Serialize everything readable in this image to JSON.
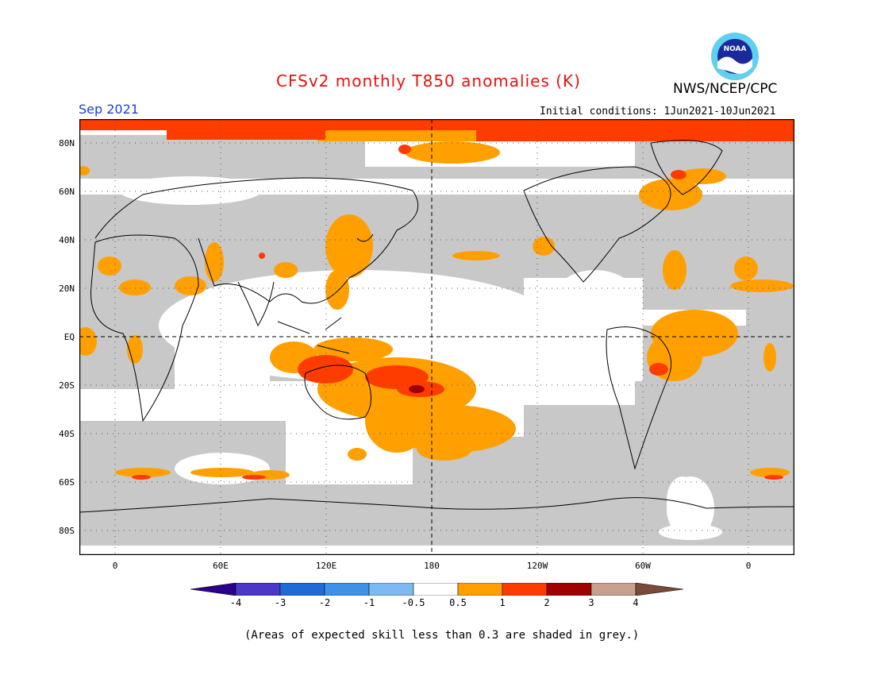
{
  "title": "CFSv2 monthly T850 anomalies (K)",
  "organization": "NWS/NCEP/CPC",
  "logo_text": "NOAA",
  "target_month": "Sep 2021",
  "initial_conditions": "Initial conditions: 1Jun2021-10Jun2021",
  "footnote": "(Areas of expected skill less than 0.3 are shaded in grey.)",
  "map": {
    "latitude_labels": [
      "80N",
      "60N",
      "40N",
      "20N",
      "EQ",
      "20S",
      "40S",
      "60S",
      "80S"
    ],
    "longitude_labels": [
      "0",
      "60E",
      "120E",
      "180",
      "120W",
      "60W",
      "0"
    ]
  },
  "colorbar": {
    "labels": [
      "-4",
      "-3",
      "-2",
      "-1",
      "-0.5",
      "0.5",
      "1",
      "2",
      "3",
      "4"
    ],
    "colors": {
      "lt_-4": "#2a0088",
      "-4_-3": "#4a38c8",
      "-3_-2": "#1e6bd6",
      "-2_-1": "#3c92e8",
      "-1_-0.5": "#7dbaf2",
      "-0.5_0.5": "#ffffff",
      "0.5_1": "#ffa000",
      "1_2": "#ff3c00",
      "2_3": "#a00000",
      "3_4": "#c8a090",
      "gt_4": "#7a4a3a"
    },
    "grey_skill_mask": "#c8c8c8"
  }
}
